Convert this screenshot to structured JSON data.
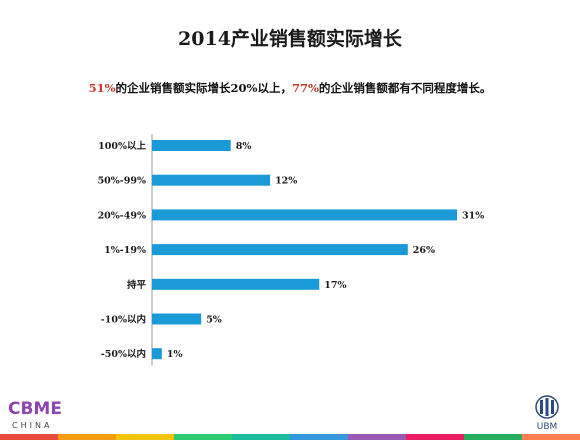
{
  "header": {
    "title": "2014产业销售额实际增长",
    "subtitle": {
      "pct_a": "51%",
      "text_a": "的企业销售额实际增长20%以上，",
      "pct_b": "77%",
      "text_b": "的企业销售额都有不同程度增长。"
    }
  },
  "chart_data": {
    "type": "bar",
    "orientation": "horizontal",
    "categories": [
      "100%以上",
      "50%-99%",
      "20%-49%",
      "1%-19%",
      "持平",
      "-10%以内",
      "-50%以内"
    ],
    "values": [
      8,
      12,
      31,
      26,
      17,
      5,
      1
    ],
    "data_labels": [
      "8%",
      "12%",
      "31%",
      "26%",
      "17%",
      "5%",
      "1%"
    ],
    "bar_color": "#1a9bd7",
    "xlim": [
      0,
      31
    ],
    "grid": false,
    "legend": "none"
  },
  "logos": {
    "left_brand": "CBME",
    "left_sub": "CHINA",
    "right_brand": "UBM"
  },
  "colors": {
    "highlight": "#c0392b",
    "stripe": [
      "#e84c3d",
      "#f39c12",
      "#f1c40f",
      "#2ecc71",
      "#1abc9c",
      "#3498db",
      "#9b59b6",
      "#e91e63",
      "#27ae60",
      "#ff7f50"
    ]
  }
}
